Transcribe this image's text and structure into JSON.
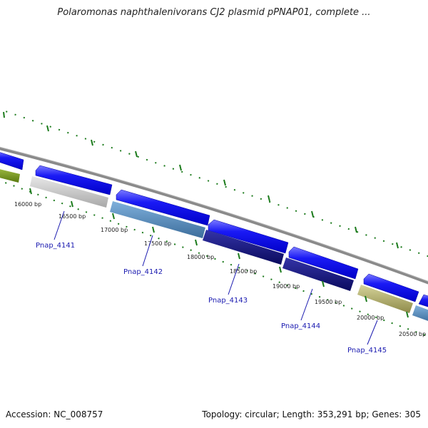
{
  "title": "Polaromonas naphthalenivorans CJ2 plasmid pPNAP01, complete ...",
  "footer": {
    "accession": "Accession: NC_008757",
    "summary": "Topology: circular; Length: 353,291 bp; Genes: 305"
  },
  "colors": {
    "backbone": "#8a8a8a",
    "strand_forward": "#1010ee",
    "tick": "#1b7a1b",
    "label": "#1a1ab0"
  },
  "positions": [
    {
      "text": "16000 bp"
    },
    {
      "text": "16500 bp"
    },
    {
      "text": "17000 bp"
    },
    {
      "text": "17500 bp"
    },
    {
      "text": "18000 bp"
    },
    {
      "text": "18500 bp"
    },
    {
      "text": "19000 bp"
    },
    {
      "text": "19500 bp"
    },
    {
      "text": "20000 bp"
    },
    {
      "text": "20500 bp"
    }
  ],
  "genes": [
    {
      "name": "Pnap_4141"
    },
    {
      "name": "Pnap_4142"
    },
    {
      "name": "Pnap_4143"
    },
    {
      "name": "Pnap_4144"
    },
    {
      "name": "Pnap_4145"
    }
  ]
}
